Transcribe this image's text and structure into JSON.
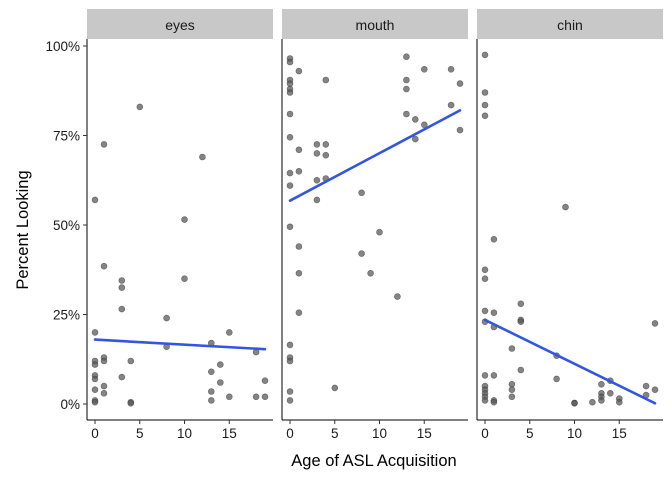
{
  "chart_data": {
    "type": "scatter",
    "xlabel": "Age of ASL Acquisition",
    "ylabel": "Percent Looking",
    "xlim": [
      -1,
      19.5
    ],
    "ylim": [
      0,
      1.0
    ],
    "x_ticks": [
      0,
      5,
      10,
      15
    ],
    "x_tick_labels": [
      "0",
      "5",
      "10",
      "15"
    ],
    "y_ticks": [
      0,
      0.25,
      0.5,
      0.75,
      1.0
    ],
    "y_tick_labels": [
      "0%",
      "25%",
      "50%",
      "75%",
      "100%"
    ],
    "point_color": "#555555",
    "line_color": "#3355e0",
    "strip_color": "#c8c8c8",
    "grid": false,
    "panels": [
      {
        "label": "eyes",
        "trend": {
          "x": [
            0,
            19
          ],
          "y": [
            0.18,
            0.153
          ]
        },
        "points": [
          [
            0,
            0.57
          ],
          [
            0,
            0.2
          ],
          [
            0,
            0.12
          ],
          [
            0,
            0.11
          ],
          [
            0,
            0.08
          ],
          [
            0,
            0.07
          ],
          [
            0,
            0.04
          ],
          [
            0,
            0.01
          ],
          [
            0,
            0.005
          ],
          [
            1,
            0.725
          ],
          [
            1,
            0.385
          ],
          [
            1,
            0.13
          ],
          [
            1,
            0.12
          ],
          [
            1,
            0.05
          ],
          [
            1,
            0.03
          ],
          [
            3,
            0.345
          ],
          [
            3,
            0.325
          ],
          [
            3,
            0.265
          ],
          [
            3,
            0.075
          ],
          [
            4,
            0.12
          ],
          [
            4,
            0.005
          ],
          [
            4,
            0.002
          ],
          [
            5,
            0.83
          ],
          [
            8,
            0.24
          ],
          [
            8,
            0.16
          ],
          [
            10,
            0.515
          ],
          [
            10,
            0.35
          ],
          [
            12,
            0.69
          ],
          [
            13,
            0.17
          ],
          [
            13,
            0.09
          ],
          [
            13,
            0.035
          ],
          [
            13,
            0.01
          ],
          [
            14,
            0.11
          ],
          [
            14,
            0.06
          ],
          [
            15,
            0.2
          ],
          [
            15,
            0.02
          ],
          [
            18,
            0.145
          ],
          [
            18,
            0.02
          ],
          [
            19,
            0.065
          ],
          [
            19,
            0.02
          ]
        ]
      },
      {
        "label": "mouth",
        "trend": {
          "x": [
            0,
            19
          ],
          "y": [
            0.568,
            0.82
          ]
        },
        "points": [
          [
            0,
            0.965
          ],
          [
            0,
            0.955
          ],
          [
            0,
            0.905
          ],
          [
            0,
            0.895
          ],
          [
            0,
            0.88
          ],
          [
            0,
            0.87
          ],
          [
            0,
            0.81
          ],
          [
            0,
            0.745
          ],
          [
            0,
            0.645
          ],
          [
            0,
            0.61
          ],
          [
            0,
            0.495
          ],
          [
            0,
            0.165
          ],
          [
            0,
            0.13
          ],
          [
            0,
            0.12
          ],
          [
            0,
            0.035
          ],
          [
            0,
            0.01
          ],
          [
            1,
            0.93
          ],
          [
            1,
            0.71
          ],
          [
            1,
            0.65
          ],
          [
            1,
            0.44
          ],
          [
            1,
            0.365
          ],
          [
            1,
            0.255
          ],
          [
            3,
            0.725
          ],
          [
            3,
            0.7
          ],
          [
            3,
            0.625
          ],
          [
            3,
            0.57
          ],
          [
            4,
            0.905
          ],
          [
            4,
            0.725
          ],
          [
            4,
            0.695
          ],
          [
            4,
            0.63
          ],
          [
            5,
            0.045
          ],
          [
            8,
            0.59
          ],
          [
            8,
            0.42
          ],
          [
            9,
            0.365
          ],
          [
            10,
            0.48
          ],
          [
            12,
            0.3
          ],
          [
            13,
            0.97
          ],
          [
            13,
            0.905
          ],
          [
            13,
            0.88
          ],
          [
            13,
            0.81
          ],
          [
            14,
            0.795
          ],
          [
            14,
            0.74
          ],
          [
            15,
            0.935
          ],
          [
            15,
            0.78
          ],
          [
            18,
            0.935
          ],
          [
            18,
            0.835
          ],
          [
            19,
            0.895
          ],
          [
            19,
            0.765
          ]
        ]
      },
      {
        "label": "chin",
        "trend": {
          "x": [
            0,
            19
          ],
          "y": [
            0.235,
            0.002
          ]
        },
        "points": [
          [
            0,
            0.975
          ],
          [
            0,
            0.87
          ],
          [
            0,
            0.835
          ],
          [
            0,
            0.805
          ],
          [
            0,
            0.375
          ],
          [
            0,
            0.35
          ],
          [
            0,
            0.26
          ],
          [
            0,
            0.23
          ],
          [
            0,
            0.08
          ],
          [
            0,
            0.05
          ],
          [
            0,
            0.04
          ],
          [
            0,
            0.03
          ],
          [
            0,
            0.02
          ],
          [
            0,
            0.01
          ],
          [
            1,
            0.46
          ],
          [
            1,
            0.255
          ],
          [
            1,
            0.215
          ],
          [
            1,
            0.08
          ],
          [
            1,
            0.01
          ],
          [
            1,
            0.005
          ],
          [
            3,
            0.155
          ],
          [
            3,
            0.055
          ],
          [
            3,
            0.04
          ],
          [
            3,
            0.02
          ],
          [
            4,
            0.28
          ],
          [
            4,
            0.235
          ],
          [
            4,
            0.23
          ],
          [
            4,
            0.095
          ],
          [
            8,
            0.135
          ],
          [
            8,
            0.07
          ],
          [
            9,
            0.55
          ],
          [
            10,
            0.003
          ],
          [
            10,
            0.002
          ],
          [
            12,
            0.005
          ],
          [
            13,
            0.055
          ],
          [
            13,
            0.03
          ],
          [
            13,
            0.02
          ],
          [
            13,
            0.01
          ],
          [
            14,
            0.065
          ],
          [
            14,
            0.03
          ],
          [
            15,
            0.015
          ],
          [
            15,
            0.005
          ],
          [
            18,
            0.05
          ],
          [
            18,
            0.025
          ],
          [
            19,
            0.225
          ],
          [
            19,
            0.04
          ]
        ]
      }
    ]
  }
}
